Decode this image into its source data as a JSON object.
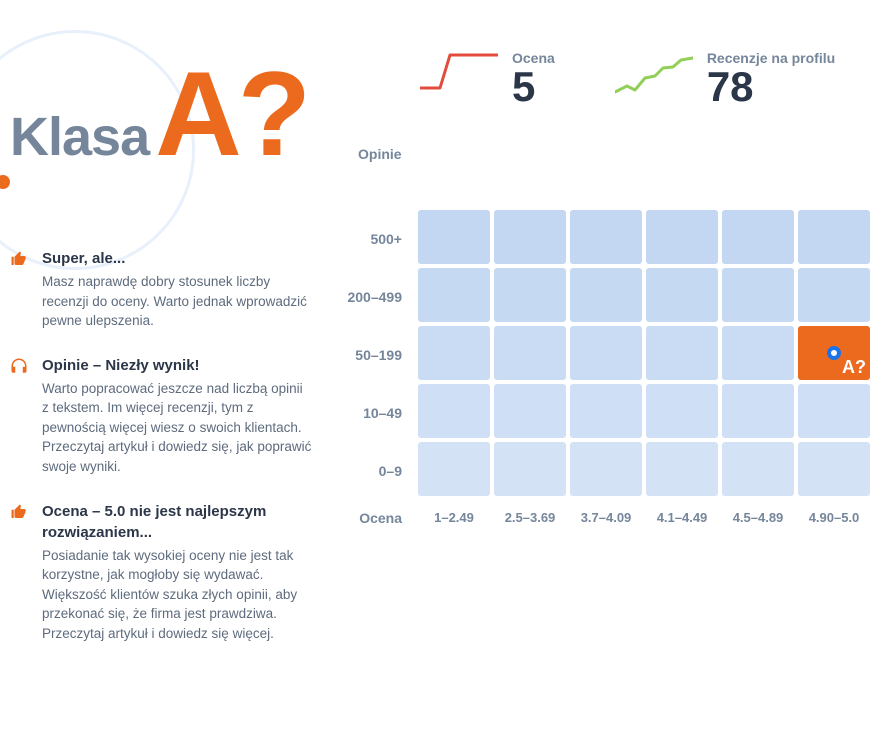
{
  "colors": {
    "accent_orange": "#ec6a1e",
    "text_muted": "#75869b",
    "text_dark": "#2b3648",
    "text_body": "#5e6b7d",
    "circle_border": "#e8f0fc",
    "cell_base": "#c3d7f2",
    "cell_active": "#ec6a1e",
    "spark_red": "#e34b3c",
    "spark_green": "#92cf56",
    "marker_border": "#1a73e8",
    "marker_fill": "#ffffff"
  },
  "header": {
    "klasa_label": "Klasa",
    "grade": "A?",
    "opinie_label": "Opinie"
  },
  "tips": [
    {
      "icon": "thumb-up",
      "icon_color": "#ec6a1e",
      "title": "Super, ale...",
      "text": "Masz naprawdę dobry stosunek liczby recenzji do oceny. Warto jednak wprowadzić pewne ulepszenia."
    },
    {
      "icon": "headphones",
      "icon_color": "#ec6a1e",
      "title": "Opinie – Niezły wynik!",
      "text": "Warto popracować jeszcze nad liczbą opinii z tekstem. Im więcej recenzji, tym z pewnością więcej wiesz o swoich klientach. Przeczytaj artykuł i dowiedz się, jak poprawić swoje wyniki."
    },
    {
      "icon": "thumb-up",
      "icon_color": "#ec6a1e",
      "title": "Ocena – 5.0 nie jest najlepszym rozwiązaniem...",
      "text": "Posiadanie tak wysokiej oceny nie jest tak korzystne, jak mogłoby się wydawać. Większość klientów szuka złych opinii, aby przekonać się, że firma jest prawdziwa. Przeczytaj artykuł i dowiedz się więcej."
    }
  ],
  "metrics": {
    "score": {
      "label": "Ocena",
      "value": "5",
      "spark_color": "#e34b3c",
      "spark_points": [
        [
          0,
          38
        ],
        [
          20,
          38
        ],
        [
          30,
          5
        ],
        [
          78,
          5
        ]
      ]
    },
    "reviews": {
      "label": "Recenzje na profilu",
      "value": "78",
      "spark_color": "#92cf56",
      "spark_points": [
        [
          0,
          42
        ],
        [
          12,
          36
        ],
        [
          20,
          40
        ],
        [
          30,
          28
        ],
        [
          40,
          26
        ],
        [
          48,
          18
        ],
        [
          58,
          17
        ],
        [
          66,
          10
        ],
        [
          78,
          8
        ]
      ]
    }
  },
  "heatmap": {
    "row_labels": [
      "500+",
      "200–499",
      "50–199",
      "10–49",
      "0–9"
    ],
    "col_labels": [
      "1–2.49",
      "2.5–3.69",
      "3.7–4.09",
      "4.1–4.49",
      "4.5–4.89",
      "4.90–5.0"
    ],
    "y_axis_label": "Ocena",
    "cell_color": "#c3d7f2",
    "cell_opacities_by_row": [
      1.0,
      0.95,
      0.88,
      0.8,
      0.72
    ],
    "active": {
      "row": 2,
      "col": 5,
      "label": "A?",
      "bg": "#ec6a1e"
    }
  }
}
